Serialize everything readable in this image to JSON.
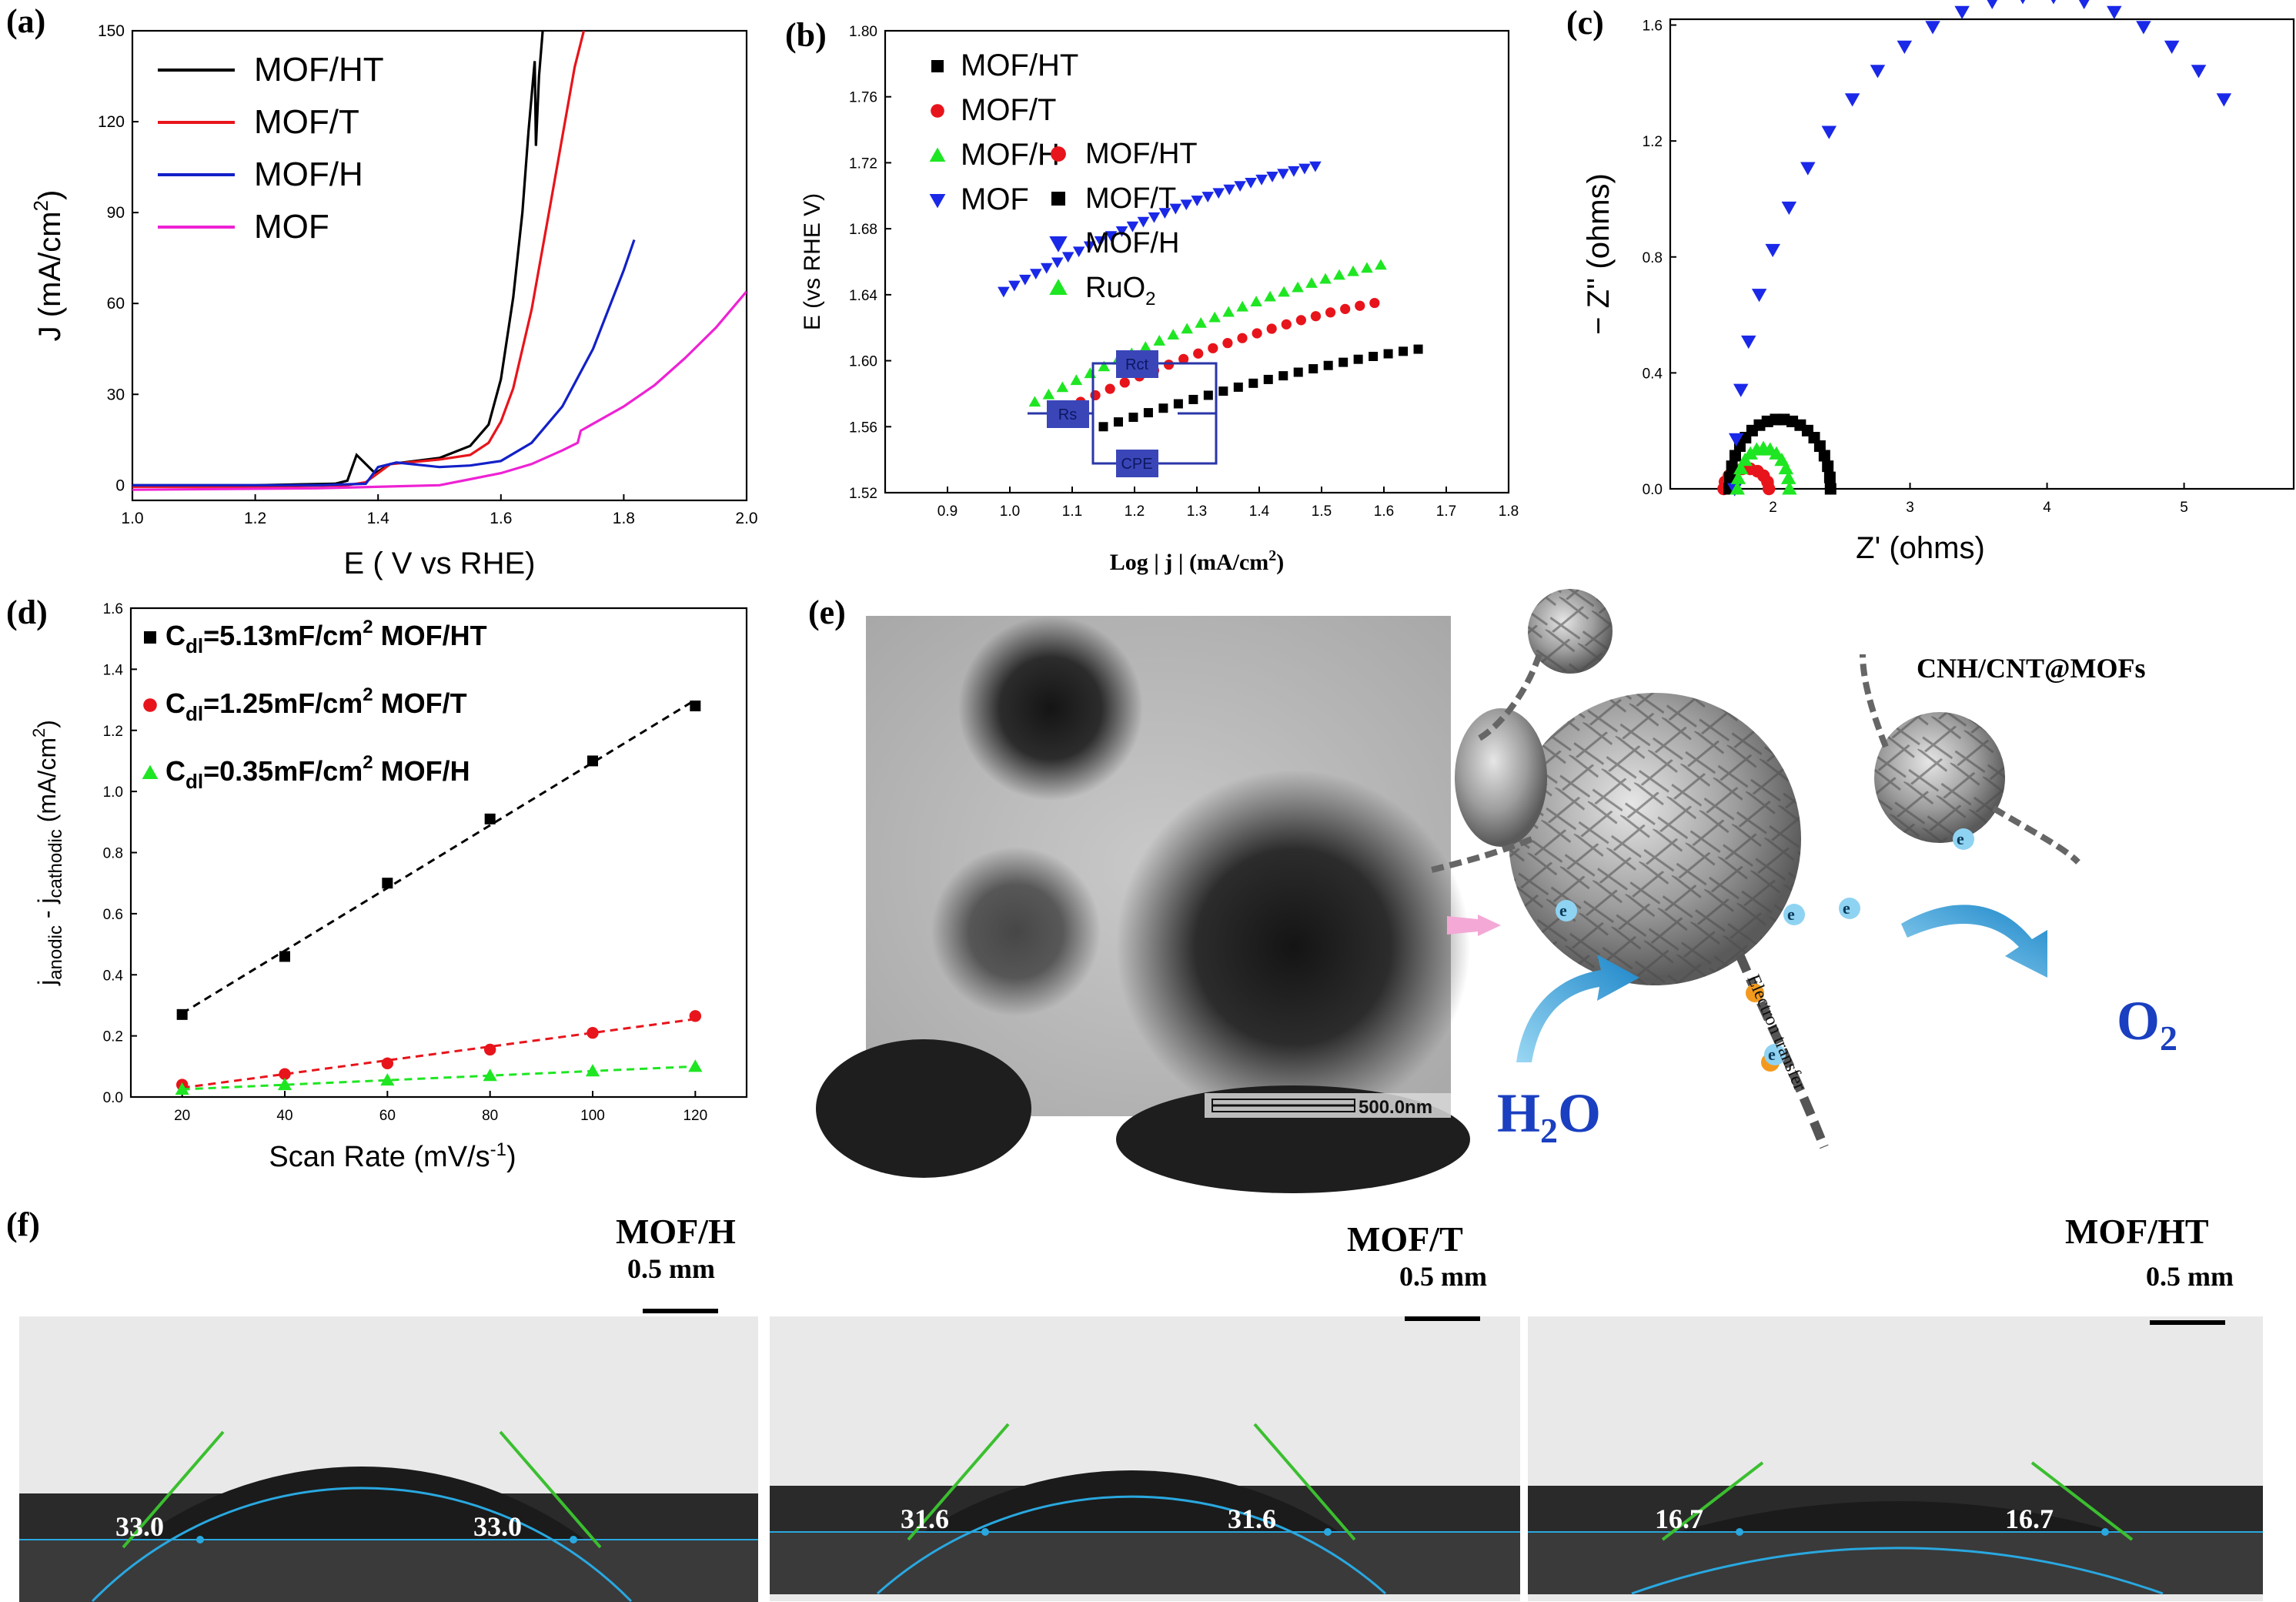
{
  "panels": {
    "a": {
      "label": "(a)",
      "chart_data": {
        "type": "line",
        "xlabel": "E ( V vs RHE)",
        "ylabel": "J (mA/cm",
        "ylabel_sup": "2",
        "ylabel_end": ")",
        "xlim": [
          1.0,
          2.0
        ],
        "ylim": [
          -5,
          150
        ],
        "xticks": [
          "1.0",
          "1.2",
          "1.4",
          "1.6",
          "1.8",
          "2.0"
        ],
        "yticks": [
          "0",
          "30",
          "60",
          "90",
          "120",
          "150"
        ],
        "series": [
          {
            "name": "MOF/HT",
            "color": "#000000",
            "x": [
              1.0,
              1.2,
              1.33,
              1.35,
              1.365,
              1.38,
              1.395,
              1.42,
              1.5,
              1.55,
              1.58,
              1.6,
              1.62,
              1.635,
              1.645,
              1.655,
              1.657,
              1.662,
              1.668
            ],
            "y": [
              0,
              0,
              0.5,
              1.5,
              10,
              7,
              4,
              7,
              9,
              13,
              20,
              35,
              62,
              90,
              117,
              140,
              112,
              135,
              150
            ]
          },
          {
            "name": "MOF/T",
            "color": "#e8141b",
            "x": [
              1.0,
              1.2,
              1.35,
              1.38,
              1.42,
              1.5,
              1.55,
              1.58,
              1.6,
              1.62,
              1.65,
              1.68,
              1.7,
              1.72,
              1.735
            ],
            "y": [
              -0.5,
              -0.5,
              0,
              1,
              7,
              8.5,
              10,
              14,
              21,
              32,
              58,
              92,
              115,
              138,
              150
            ]
          },
          {
            "name": "MOF/H",
            "color": "#1220c8",
            "x": [
              1.0,
              1.3,
              1.38,
              1.4,
              1.43,
              1.5,
              1.55,
              1.6,
              1.65,
              1.7,
              1.75,
              1.8,
              1.817
            ],
            "y": [
              0,
              0,
              0.5,
              6,
              7.5,
              6,
              6.5,
              8,
              14,
              26,
              45,
              71,
              81
            ]
          },
          {
            "name": "MOF",
            "color": "#ee22d4",
            "x": [
              1.0,
              1.3,
              1.5,
              1.55,
              1.6,
              1.65,
              1.7,
              1.725,
              1.73,
              1.8,
              1.85,
              1.9,
              1.95,
              2.0
            ],
            "y": [
              -1.5,
              -1.0,
              0,
              2,
              4,
              7,
              11.5,
              14,
              18,
              26,
              33,
              42,
              52,
              64
            ]
          }
        ]
      }
    },
    "b": {
      "label": "(b)",
      "chart_data": {
        "type": "scatter",
        "xlabel": "Log | j | (mA/cm",
        "xlabel_sup": "2",
        "xlabel_end": ")",
        "ylabel": "E (vs RHE V)",
        "xlim": [
          0.8,
          1.8
        ],
        "ylim": [
          1.52,
          1.8
        ],
        "xticks": [
          "0.9",
          "1.0",
          "1.1",
          "1.2",
          "1.3",
          "1.4",
          "1.5",
          "1.6",
          "1.7",
          "1.8"
        ],
        "yticks": [
          "1.52",
          "1.56",
          "1.60",
          "1.64",
          "1.68",
          "1.72",
          "1.76",
          "1.80"
        ],
        "series": [
          {
            "name": "MOF/HT",
            "color": "#000000",
            "marker": "square",
            "x_start": 1.15,
            "x_end": 1.655,
            "y_start": 1.56,
            "y_end": 1.607,
            "n": 22,
            "curve": 0.6
          },
          {
            "name": "MOF/T",
            "color": "#e8141b",
            "marker": "circle",
            "x_start": 1.09,
            "x_end": 1.585,
            "y_start": 1.571,
            "y_end": 1.635,
            "n": 22,
            "curve": 0.7
          },
          {
            "name": "MOF/H",
            "color": "#1ee622",
            "marker": "triangle",
            "x_start": 1.04,
            "x_end": 1.595,
            "y_start": 1.575,
            "y_end": 1.658,
            "n": 26,
            "curve": 0.7
          },
          {
            "name": "MOF",
            "color": "#1a28e8",
            "marker": "triangle-down",
            "x_start": 0.99,
            "x_end": 1.49,
            "y_start": 1.642,
            "y_end": 1.718,
            "n": 30,
            "curve": 0.85
          }
        ]
      }
    },
    "c": {
      "label": "(c)",
      "chart_data": {
        "type": "scatter",
        "xlabel": "Z' (ohms)",
        "ylabel": "− Z'' (ohms)",
        "xlim": [
          1.25,
          5.8
        ],
        "ylim": [
          0,
          1.62
        ],
        "xticks": [
          "2",
          "3",
          "4",
          "5"
        ],
        "yticks": [
          "0.0",
          "0.4",
          "0.8",
          "1.2",
          "1.6"
        ],
        "series": [
          {
            "name": "MOF/HT",
            "color": "#e8141b",
            "marker": "circle",
            "r0": 1.64,
            "r1": 1.97,
            "peak": 0.07,
            "n": 10
          },
          {
            "name": "MOF/T",
            "color": "#000000",
            "marker": "square",
            "r0": 1.68,
            "r1": 2.42,
            "peak": 0.24,
            "n": 20
          },
          {
            "name": "MOF/H",
            "color": "#1a28e8",
            "marker": "triangle-down",
            "r0": 1.72,
            "r1": 6.15,
            "peak": 1.7,
            "n": 32,
            "stop_x": 5.36
          },
          {
            "name": "RuO",
            "sub": "2",
            "color": "#1ee622",
            "marker": "triangle",
            "r0": 1.74,
            "r1": 2.12,
            "peak": 0.14,
            "n": 13
          }
        ],
        "circuit": {
          "rs": "Rs",
          "rct": "Rct",
          "cpe": "CPE"
        }
      }
    },
    "d": {
      "label": "(d)",
      "chart_data": {
        "type": "scatter",
        "xlabel": "Scan Rate (mV/s",
        "xlabel_sup": "-1",
        "xlabel_end": ")",
        "ylabel_a": "j",
        "ylabel_a_sub": "anodic",
        "ylabel_mid": " - j",
        "ylabel_b_sub": "cathodic",
        "ylabel_c": " (mA/cm",
        "ylabel_sup": "2",
        "ylabel_end": ")",
        "xlim": [
          10,
          130
        ],
        "ylim": [
          0,
          1.6
        ],
        "xticks": [
          "20",
          "40",
          "60",
          "80",
          "100",
          "120"
        ],
        "yticks": [
          "0.0",
          "0.2",
          "0.4",
          "0.6",
          "0.8",
          "1.0",
          "1.2",
          "1.4",
          "1.6"
        ],
        "x": [
          20,
          40,
          60,
          80,
          100,
          120
        ],
        "series": [
          {
            "name": "MOF/HT",
            "cdl_prefix": "C",
            "cdl_sub": "dl",
            "cdl_value": "=5.13mF/cm",
            "cdl_sup": "2",
            "color": "#000000",
            "marker": "square",
            "values": [
              0.27,
              0.46,
              0.7,
              0.91,
              1.1,
              1.28
            ]
          },
          {
            "name": "MOF/T",
            "cdl_prefix": "C",
            "cdl_sub": "dl",
            "cdl_value": "=1.25mF/cm",
            "cdl_sup": "2",
            "color": "#e8141b",
            "marker": "circle",
            "values": [
              0.04,
              0.075,
              0.11,
              0.155,
              0.21,
              0.265
            ]
          },
          {
            "name": "MOF/H",
            "cdl_prefix": "C",
            "cdl_sub": "dl",
            "cdl_value": "=0.35mF/cm",
            "cdl_sup": "2",
            "color": "#1ee622",
            "marker": "triangle",
            "values": [
              0.025,
              0.04,
              0.055,
              0.07,
              0.085,
              0.1
            ]
          }
        ]
      }
    },
    "e": {
      "label": "(e)",
      "scalebar": "500.0nm",
      "title": "CNH/CNT@MOFs",
      "electron": "e",
      "electron_sup": "-",
      "transfer": "Electron transfer",
      "h2o_a": "H",
      "h2o_sub": "2",
      "h2o_b": "O",
      "o2_a": "O",
      "o2_sub": "2"
    },
    "f": {
      "label": "(f)",
      "scale": "0.5 mm",
      "images": [
        {
          "name": "MOF/H",
          "angle_left": "33.0",
          "angle_right": "33.0"
        },
        {
          "name": "MOF/T",
          "angle_left": "31.6",
          "angle_right": "31.6"
        },
        {
          "name": "MOF/HT",
          "angle_left": "16.7",
          "angle_right": "16.7"
        }
      ]
    }
  }
}
